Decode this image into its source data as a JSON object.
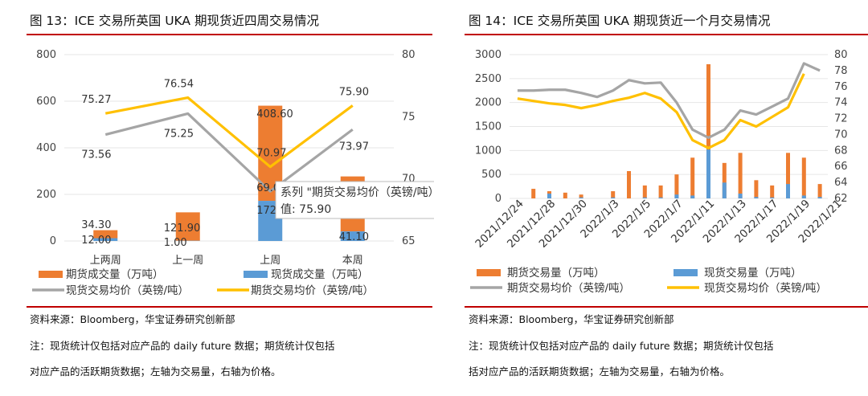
{
  "left": {
    "title": "图 13：ICE 交易所英国 UKA 期现货近四周交易情况",
    "source": "资料来源：Bloomberg，华宝证券研究创新部",
    "note1": "注：现货统计仅包括对应产品的 daily future 数据；期货统计仅包括",
    "note2": "对应产品的活跃期货数据；左轴为交易量，右轴为价格。"
  },
  "right": {
    "title": "图 14：ICE 交易所英国 UKA 期现货近一个月交易情况",
    "source": "资料来源：Bloomberg，华宝证券研究创新部",
    "note1": "注：现货统计仅包括对应产品的 daily future 数据；期货统计仅包括",
    "note2": "括对应产品的活跃期货数据；左轴为交易量，右轴为价格。"
  },
  "colors": {
    "futures_bar": "#ED7D31",
    "spot_bar": "#5B9BD5",
    "spot_price": "#A5A5A5",
    "futures_price": "#FFC000",
    "rule": "#C00000"
  },
  "chart_data": [
    {
      "type": "bar",
      "categories": [
        "上两周",
        "上一周",
        "上周",
        "本周"
      ],
      "stacked": true,
      "left_axis": {
        "ylim": [
          0,
          800
        ],
        "ticks": [
          0,
          200,
          400,
          600,
          800
        ]
      },
      "right_axis": {
        "ylim": [
          65,
          80
        ],
        "ticks": [
          65,
          70,
          75,
          80
        ]
      },
      "series": [
        {
          "name": "期货成交量（万吨）",
          "kind": "bar",
          "axis": "left",
          "values": [
            34.3,
            121.9,
            408.6,
            236.0
          ],
          "labels": [
            "34.30",
            "121.90",
            "408.60",
            "236.00"
          ]
        },
        {
          "name": "现货成交量（万吨）",
          "kind": "bar",
          "axis": "left",
          "values": [
            12.0,
            1.0,
            172.2,
            41.1
          ],
          "labels": [
            "12.00",
            "1.00",
            "172.20",
            "41.10"
          ]
        },
        {
          "name": "现货交易均价（英镑/吨）",
          "kind": "line",
          "axis": "right",
          "values": [
            73.56,
            75.25,
            69.0,
            73.97
          ],
          "labels": [
            "73.56",
            "75.25",
            "69.0",
            "73.97"
          ]
        },
        {
          "name": "期货交易均价（英镑/吨）",
          "kind": "line",
          "axis": "right",
          "values": [
            75.27,
            76.54,
            70.97,
            75.9
          ],
          "labels": [
            "75.27",
            "76.54",
            "70.97",
            "75.90"
          ]
        }
      ],
      "tooltip": {
        "line1": "系列 \"期货交易均价（英镑/吨）\" 点 \"本周\"",
        "line2": "值: 75.90"
      }
    },
    {
      "type": "bar",
      "categories": [
        "2021/12/24",
        "2021/12/28",
        "2021/12/29",
        "2021/12/30",
        "2021/12/31",
        "2022/1/3",
        "2022/1/4",
        "2022/1/5",
        "2022/1/6",
        "2022/1/7",
        "2022/1/10",
        "2022/1/11",
        "2022/1/12",
        "2022/1/13",
        "2022/1/14",
        "2022/1/17",
        "2022/1/18",
        "2022/1/19",
        "2022/1/20",
        "2022/1/21"
      ],
      "tick_labels": [
        "2021/12/24",
        "2021/12/28",
        "2021/12/30",
        "2022/1/3",
        "2022/1/5",
        "2022/1/7",
        "2022/1/11",
        "2022/1/13",
        "2022/1/17",
        "2022/1/19",
        "2022/1/21"
      ],
      "left_axis": {
        "ylim": [
          0,
          3000
        ],
        "ticks": [
          0,
          500,
          1000,
          1500,
          2000,
          2500,
          3000
        ]
      },
      "right_axis": {
        "ylim": [
          62,
          80
        ],
        "ticks": [
          62,
          64,
          66,
          68,
          70,
          72,
          74,
          76,
          78,
          80
        ]
      },
      "series": [
        {
          "name": "期货交易量（万吨）",
          "kind": "bar",
          "axis": "left",
          "values": [
            0,
            200,
            150,
            120,
            80,
            0,
            150,
            570,
            270,
            270,
            500,
            850,
            2800,
            740,
            950,
            380,
            270,
            950,
            850,
            300
          ]
        },
        {
          "name": "现货交易量（万吨）",
          "kind": "bar",
          "axis": "left",
          "values": [
            0,
            0,
            100,
            0,
            20,
            0,
            20,
            0,
            20,
            20,
            80,
            60,
            1020,
            330,
            100,
            30,
            20,
            300,
            60,
            30
          ]
        },
        {
          "name": "期货交易均价（英镑/吨）",
          "kind": "line",
          "axis": "right",
          "values": [
            75.5,
            75.5,
            75.6,
            75.6,
            75.2,
            74.7,
            75.5,
            76.8,
            76.4,
            76.5,
            74.0,
            70.6,
            69.6,
            70.6,
            73.0,
            72.5,
            73.5,
            74.5,
            78.9,
            78.0
          ]
        },
        {
          "name": "现货交易均价（英镑/吨）",
          "kind": "line",
          "axis": "right",
          "values": [
            74.5,
            74.2,
            73.9,
            73.7,
            73.3,
            73.7,
            74.2,
            74.6,
            75.2,
            74.5,
            72.8,
            69.3,
            68.3,
            69.3,
            71.8,
            71.0,
            72.2,
            73.4,
            77.6,
            null
          ]
        }
      ]
    }
  ]
}
